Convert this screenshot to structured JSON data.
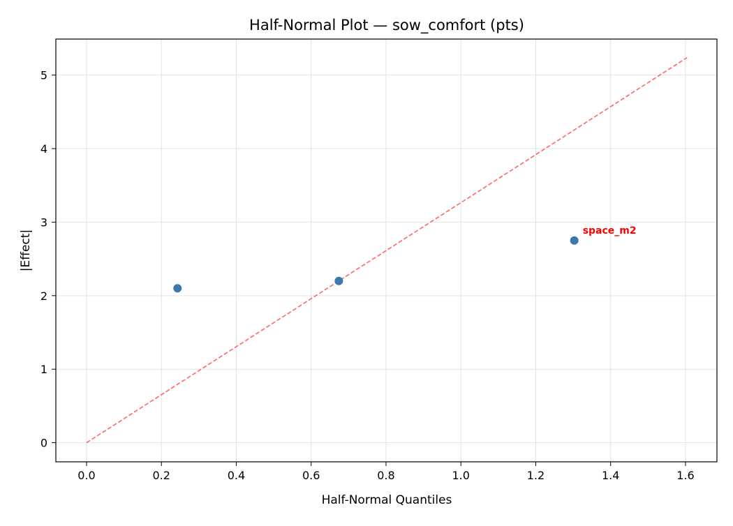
{
  "chart_data": {
    "type": "scatter",
    "title": "Half-Normal Plot — sow_comfort (pts)",
    "xlabel": "Half-Normal Quantiles",
    "ylabel": "|Effect|",
    "xlim": [
      -0.082,
      1.684
    ],
    "ylim": [
      -0.26,
      5.49
    ],
    "xticks": [
      0.0,
      0.2,
      0.4,
      0.6,
      0.8,
      1.0,
      1.2,
      1.4,
      1.6
    ],
    "xtick_labels": [
      "0.0",
      "0.2",
      "0.4",
      "0.6",
      "0.8",
      "1.0",
      "1.2",
      "1.4",
      "1.6"
    ],
    "yticks": [
      0,
      1,
      2,
      3,
      4,
      5
    ],
    "ytick_labels": [
      "0",
      "1",
      "2",
      "3",
      "4",
      "5"
    ],
    "grid": true,
    "points": [
      {
        "x": 0.243,
        "y": 2.1,
        "label": ""
      },
      {
        "x": 0.674,
        "y": 2.2,
        "label": ""
      },
      {
        "x": 1.303,
        "y": 2.75,
        "label": "space_m2"
      }
    ],
    "reference_line": {
      "x": [
        0.0,
        1.604
      ],
      "y": [
        0.0,
        5.237
      ],
      "style": "dashed"
    },
    "colors": {
      "points": "#3b78b0",
      "line": "#ff6666",
      "annotation": "#ff0000"
    }
  }
}
